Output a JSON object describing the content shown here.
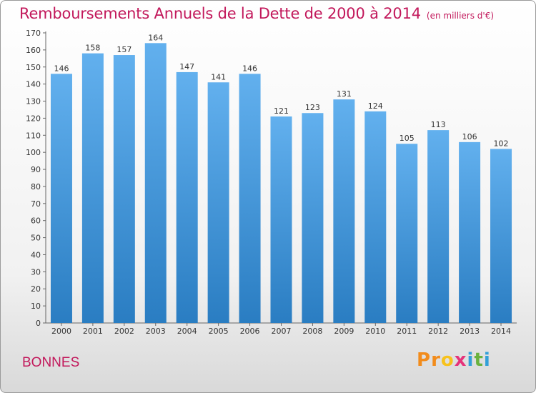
{
  "header": {
    "title": "Remboursements Annuels de la Dette de 2000 à 2014",
    "subtitle": "(en milliers d'€)"
  },
  "footer": {
    "place": "BONNES",
    "logo": [
      "P",
      "r",
      "o",
      "x",
      "i",
      "t",
      "i"
    ]
  },
  "colors": {
    "accent": "#c2185b",
    "bar_light": "#62b0ee",
    "bar_dark": "#2a7dc2",
    "logo": [
      "#f28c1c",
      "#f28c1c",
      "#f7c21d",
      "#e5337a",
      "#33a0d8",
      "#6ab23e",
      "#33a0d8"
    ]
  },
  "chart_data": {
    "type": "bar",
    "title": "Remboursements Annuels de la Dette de 2000 à 2014",
    "subtitle": "(en milliers d'€)",
    "xlabel": "",
    "ylabel": "",
    "categories": [
      "2000",
      "2001",
      "2002",
      "2003",
      "2004",
      "2005",
      "2006",
      "2007",
      "2008",
      "2009",
      "2010",
      "2011",
      "2012",
      "2013",
      "2014"
    ],
    "values": [
      146,
      158,
      157,
      164,
      147,
      141,
      146,
      121,
      123,
      131,
      124,
      105,
      113,
      106,
      102
    ],
    "ylim": [
      0,
      170
    ],
    "ytick_step": 10,
    "grid": false,
    "legend": "none"
  }
}
